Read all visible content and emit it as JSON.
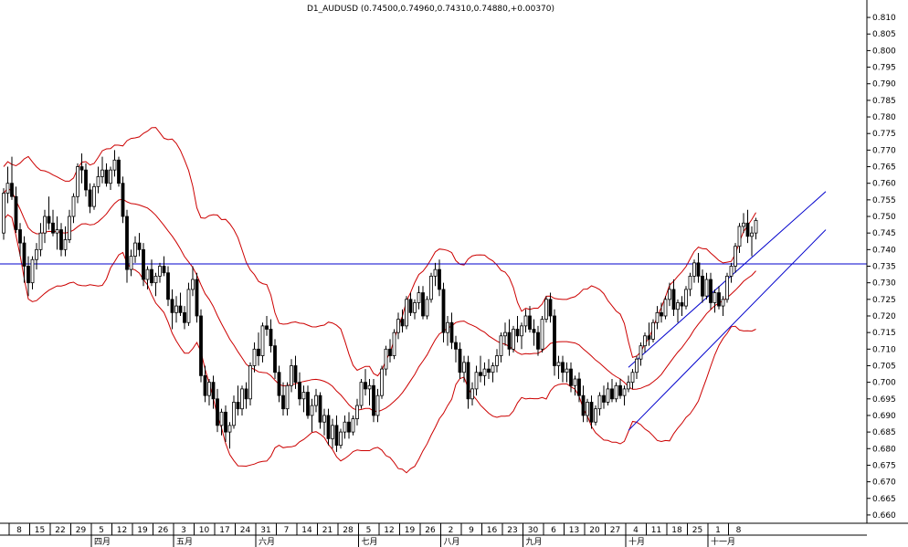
{
  "chart_data": {
    "type": "candlestick",
    "title": "D1_AUDUSD (0.74500,0.74960,0.74310,0.74880,+0.00370)",
    "ylim": [
      0.6575,
      0.8125
    ],
    "y_ticks": [
      "0.810",
      "0.805",
      "0.800",
      "0.795",
      "0.790",
      "0.785",
      "0.780",
      "0.775",
      "0.770",
      "0.765",
      "0.760",
      "0.755",
      "0.750",
      "0.745",
      "0.740",
      "0.735",
      "0.730",
      "0.725",
      "0.720",
      "0.715",
      "0.710",
      "0.705",
      "0.700",
      "0.695",
      "0.690",
      "0.685",
      "0.680",
      "0.675",
      "0.670",
      "0.665",
      "0.660"
    ],
    "x_day_labels": [
      "8",
      "15",
      "22",
      "29",
      "5",
      "12",
      "19",
      "26",
      "3",
      "10",
      "17",
      "24",
      "31",
      "7",
      "14",
      "21",
      "28",
      "5",
      "12",
      "19",
      "26",
      "2",
      "9",
      "16",
      "23",
      "30",
      "6",
      "13",
      "20",
      "27",
      "4",
      "11",
      "18",
      "25",
      "1",
      "8"
    ],
    "x_month_labels": [
      "四月",
      "五月",
      "六月",
      "七月",
      "八月",
      "九月",
      "十月",
      "十一月"
    ],
    "horizontal_line": 0.7357,
    "channel_upper": [
      [
        152,
        0.7045
      ],
      [
        200,
        0.7575
      ]
    ],
    "channel_lower": [
      [
        152,
        0.6855
      ],
      [
        200,
        0.746
      ]
    ],
    "candles": [
      [
        0.745,
        0.7585,
        0.743,
        0.757
      ],
      [
        0.757,
        0.765,
        0.754,
        0.76
      ],
      [
        0.76,
        0.768,
        0.755,
        0.756
      ],
      [
        0.756,
        0.759,
        0.745,
        0.746
      ],
      [
        0.746,
        0.748,
        0.738,
        0.742
      ],
      [
        0.742,
        0.744,
        0.73,
        0.735
      ],
      [
        0.735,
        0.738,
        0.726,
        0.73
      ],
      [
        0.73,
        0.738,
        0.728,
        0.737
      ],
      [
        0.737,
        0.742,
        0.734,
        0.74
      ],
      [
        0.74,
        0.748,
        0.738,
        0.745
      ],
      [
        0.745,
        0.752,
        0.742,
        0.75
      ],
      [
        0.75,
        0.756,
        0.746,
        0.748
      ],
      [
        0.748,
        0.752,
        0.744,
        0.745
      ],
      [
        0.745,
        0.75,
        0.74,
        0.746
      ],
      [
        0.746,
        0.748,
        0.738,
        0.74
      ],
      [
        0.74,
        0.747,
        0.738,
        0.743
      ],
      [
        0.743,
        0.752,
        0.742,
        0.75
      ],
      [
        0.75,
        0.757,
        0.748,
        0.756
      ],
      [
        0.756,
        0.766,
        0.754,
        0.765
      ],
      [
        0.765,
        0.769,
        0.76,
        0.764
      ],
      [
        0.764,
        0.766,
        0.756,
        0.758
      ],
      [
        0.758,
        0.76,
        0.751,
        0.753
      ],
      [
        0.753,
        0.76,
        0.752,
        0.759
      ],
      [
        0.759,
        0.765,
        0.757,
        0.762
      ],
      [
        0.762,
        0.768,
        0.76,
        0.764
      ],
      [
        0.764,
        0.766,
        0.759,
        0.76
      ],
      [
        0.76,
        0.765,
        0.758,
        0.764
      ],
      [
        0.764,
        0.77,
        0.762,
        0.767
      ],
      [
        0.767,
        0.768,
        0.759,
        0.76
      ],
      [
        0.76,
        0.762,
        0.748,
        0.75
      ],
      [
        0.75,
        0.752,
        0.73,
        0.734
      ],
      [
        0.734,
        0.74,
        0.732,
        0.738
      ],
      [
        0.738,
        0.744,
        0.736,
        0.742
      ],
      [
        0.742,
        0.745,
        0.738,
        0.74
      ],
      [
        0.74,
        0.742,
        0.729,
        0.731
      ],
      [
        0.731,
        0.735,
        0.728,
        0.734
      ],
      [
        0.734,
        0.737,
        0.729,
        0.73
      ],
      [
        0.73,
        0.733,
        0.726,
        0.732
      ],
      [
        0.732,
        0.736,
        0.73,
        0.735
      ],
      [
        0.735,
        0.738,
        0.732,
        0.733
      ],
      [
        0.733,
        0.735,
        0.723,
        0.725
      ],
      [
        0.725,
        0.728,
        0.716,
        0.721
      ],
      [
        0.721,
        0.726,
        0.718,
        0.723
      ],
      [
        0.723,
        0.727,
        0.72,
        0.721
      ],
      [
        0.721,
        0.723,
        0.716,
        0.718
      ],
      [
        0.718,
        0.73,
        0.717,
        0.728
      ],
      [
        0.728,
        0.735,
        0.726,
        0.731
      ],
      [
        0.731,
        0.733,
        0.718,
        0.72
      ],
      [
        0.72,
        0.722,
        0.7,
        0.702
      ],
      [
        0.702,
        0.705,
        0.694,
        0.696
      ],
      [
        0.696,
        0.701,
        0.693,
        0.7
      ],
      [
        0.7,
        0.702,
        0.692,
        0.695
      ],
      [
        0.695,
        0.698,
        0.685,
        0.687
      ],
      [
        0.687,
        0.692,
        0.684,
        0.691
      ],
      [
        0.691,
        0.693,
        0.682,
        0.685
      ],
      [
        0.685,
        0.688,
        0.68,
        0.687
      ],
      [
        0.687,
        0.696,
        0.686,
        0.694
      ],
      [
        0.694,
        0.699,
        0.69,
        0.692
      ],
      [
        0.692,
        0.699,
        0.69,
        0.698
      ],
      [
        0.698,
        0.7,
        0.692,
        0.695
      ],
      [
        0.695,
        0.706,
        0.693,
        0.705
      ],
      [
        0.705,
        0.712,
        0.703,
        0.71
      ],
      [
        0.71,
        0.715,
        0.705,
        0.708
      ],
      [
        0.708,
        0.718,
        0.706,
        0.717
      ],
      [
        0.717,
        0.72,
        0.714,
        0.716
      ],
      [
        0.716,
        0.719,
        0.709,
        0.711
      ],
      [
        0.711,
        0.713,
        0.701,
        0.703
      ],
      [
        0.703,
        0.705,
        0.694,
        0.696
      ],
      [
        0.696,
        0.7,
        0.69,
        0.692
      ],
      [
        0.692,
        0.7,
        0.69,
        0.699
      ],
      [
        0.699,
        0.707,
        0.697,
        0.705
      ],
      [
        0.705,
        0.708,
        0.698,
        0.7
      ],
      [
        0.7,
        0.703,
        0.693,
        0.695
      ],
      [
        0.695,
        0.699,
        0.691,
        0.697
      ],
      [
        0.697,
        0.699,
        0.689,
        0.69
      ],
      [
        0.69,
        0.695,
        0.685,
        0.693
      ],
      [
        0.693,
        0.698,
        0.691,
        0.696
      ],
      [
        0.696,
        0.697,
        0.686,
        0.688
      ],
      [
        0.688,
        0.692,
        0.684,
        0.69
      ],
      [
        0.69,
        0.692,
        0.681,
        0.683
      ],
      [
        0.683,
        0.689,
        0.68,
        0.687
      ],
      [
        0.687,
        0.69,
        0.679,
        0.681
      ],
      [
        0.681,
        0.686,
        0.68,
        0.685
      ],
      [
        0.685,
        0.69,
        0.683,
        0.688
      ],
      [
        0.688,
        0.691,
        0.683,
        0.685
      ],
      [
        0.685,
        0.69,
        0.684,
        0.689
      ],
      [
        0.689,
        0.695,
        0.687,
        0.693
      ],
      [
        0.693,
        0.701,
        0.692,
        0.7
      ],
      [
        0.7,
        0.704,
        0.696,
        0.698
      ],
      [
        0.698,
        0.701,
        0.693,
        0.699
      ],
      [
        0.699,
        0.701,
        0.688,
        0.69
      ],
      [
        0.69,
        0.698,
        0.688,
        0.696
      ],
      [
        0.696,
        0.705,
        0.695,
        0.704
      ],
      [
        0.704,
        0.711,
        0.702,
        0.71
      ],
      [
        0.71,
        0.713,
        0.706,
        0.708
      ],
      [
        0.708,
        0.716,
        0.707,
        0.715
      ],
      [
        0.715,
        0.721,
        0.713,
        0.719
      ],
      [
        0.719,
        0.722,
        0.715,
        0.717
      ],
      [
        0.717,
        0.726,
        0.716,
        0.725
      ],
      [
        0.725,
        0.727,
        0.72,
        0.721
      ],
      [
        0.721,
        0.725,
        0.719,
        0.724
      ],
      [
        0.724,
        0.729,
        0.722,
        0.727
      ],
      [
        0.727,
        0.729,
        0.719,
        0.72
      ],
      [
        0.72,
        0.726,
        0.719,
        0.725
      ],
      [
        0.725,
        0.733,
        0.724,
        0.732
      ],
      [
        0.732,
        0.736,
        0.729,
        0.734
      ],
      [
        0.734,
        0.737,
        0.726,
        0.728
      ],
      [
        0.728,
        0.73,
        0.712,
        0.715
      ],
      [
        0.715,
        0.72,
        0.711,
        0.718
      ],
      [
        0.718,
        0.721,
        0.71,
        0.712
      ],
      [
        0.712,
        0.714,
        0.706,
        0.71
      ],
      [
        0.71,
        0.712,
        0.701,
        0.703
      ],
      [
        0.703,
        0.708,
        0.7,
        0.706
      ],
      [
        0.706,
        0.708,
        0.692,
        0.695
      ],
      [
        0.695,
        0.7,
        0.693,
        0.698
      ],
      [
        0.698,
        0.705,
        0.696,
        0.703
      ],
      [
        0.703,
        0.708,
        0.7,
        0.702
      ],
      [
        0.702,
        0.706,
        0.699,
        0.704
      ],
      [
        0.704,
        0.707,
        0.701,
        0.703
      ],
      [
        0.703,
        0.706,
        0.7,
        0.705
      ],
      [
        0.705,
        0.71,
        0.703,
        0.708
      ],
      [
        0.708,
        0.715,
        0.706,
        0.714
      ],
      [
        0.714,
        0.718,
        0.711,
        0.715
      ],
      [
        0.715,
        0.719,
        0.708,
        0.71
      ],
      [
        0.71,
        0.717,
        0.709,
        0.716
      ],
      [
        0.716,
        0.72,
        0.712,
        0.714
      ],
      [
        0.714,
        0.718,
        0.71,
        0.717
      ],
      [
        0.717,
        0.722,
        0.715,
        0.72
      ],
      [
        0.72,
        0.723,
        0.715,
        0.716
      ],
      [
        0.716,
        0.719,
        0.711,
        0.715
      ],
      [
        0.715,
        0.717,
        0.708,
        0.71
      ],
      [
        0.71,
        0.72,
        0.709,
        0.719
      ],
      [
        0.719,
        0.726,
        0.718,
        0.725
      ],
      [
        0.725,
        0.727,
        0.718,
        0.72
      ],
      [
        0.72,
        0.722,
        0.702,
        0.705
      ],
      [
        0.705,
        0.708,
        0.701,
        0.706
      ],
      [
        0.706,
        0.708,
        0.7,
        0.703
      ],
      [
        0.703,
        0.706,
        0.7,
        0.704
      ],
      [
        0.704,
        0.706,
        0.697,
        0.699
      ],
      [
        0.699,
        0.702,
        0.696,
        0.701
      ],
      [
        0.701,
        0.703,
        0.694,
        0.696
      ],
      [
        0.696,
        0.699,
        0.688,
        0.69
      ],
      [
        0.69,
        0.695,
        0.688,
        0.694
      ],
      [
        0.694,
        0.696,
        0.686,
        0.688
      ],
      [
        0.688,
        0.693,
        0.687,
        0.692
      ],
      [
        0.692,
        0.697,
        0.69,
        0.696
      ],
      [
        0.696,
        0.699,
        0.692,
        0.694
      ],
      [
        0.694,
        0.7,
        0.693,
        0.698
      ],
      [
        0.698,
        0.701,
        0.694,
        0.695
      ],
      [
        0.695,
        0.7,
        0.694,
        0.699
      ],
      [
        0.699,
        0.701,
        0.695,
        0.696
      ],
      [
        0.696,
        0.699,
        0.693,
        0.698
      ],
      [
        0.698,
        0.702,
        0.697,
        0.7
      ],
      [
        0.7,
        0.704,
        0.698,
        0.703
      ],
      [
        0.703,
        0.708,
        0.701,
        0.707
      ],
      [
        0.707,
        0.712,
        0.705,
        0.711
      ],
      [
        0.711,
        0.715,
        0.709,
        0.714
      ],
      [
        0.714,
        0.718,
        0.711,
        0.713
      ],
      [
        0.713,
        0.719,
        0.712,
        0.718
      ],
      [
        0.718,
        0.723,
        0.716,
        0.721
      ],
      [
        0.721,
        0.724,
        0.718,
        0.72
      ],
      [
        0.72,
        0.726,
        0.719,
        0.725
      ],
      [
        0.725,
        0.73,
        0.723,
        0.728
      ],
      [
        0.728,
        0.731,
        0.72,
        0.722
      ],
      [
        0.722,
        0.725,
        0.718,
        0.724
      ],
      [
        0.724,
        0.726,
        0.72,
        0.723
      ],
      [
        0.723,
        0.729,
        0.722,
        0.728
      ],
      [
        0.728,
        0.733,
        0.726,
        0.732
      ],
      [
        0.732,
        0.737,
        0.73,
        0.736
      ],
      [
        0.736,
        0.739,
        0.73,
        0.732
      ],
      [
        0.732,
        0.734,
        0.724,
        0.726
      ],
      [
        0.726,
        0.733,
        0.725,
        0.731
      ],
      [
        0.731,
        0.733,
        0.722,
        0.724
      ],
      [
        0.724,
        0.728,
        0.721,
        0.727
      ],
      [
        0.727,
        0.729,
        0.722,
        0.723
      ],
      [
        0.723,
        0.726,
        0.72,
        0.725
      ],
      [
        0.725,
        0.733,
        0.724,
        0.732
      ],
      [
        0.732,
        0.736,
        0.73,
        0.735
      ],
      [
        0.735,
        0.742,
        0.733,
        0.741
      ],
      [
        0.741,
        0.748,
        0.739,
        0.747
      ],
      [
        0.747,
        0.751,
        0.745,
        0.748
      ],
      [
        0.748,
        0.752,
        0.742,
        0.744
      ],
      [
        0.744,
        0.747,
        0.738,
        0.745
      ],
      [
        0.745,
        0.7496,
        0.7431,
        0.7488
      ]
    ]
  }
}
